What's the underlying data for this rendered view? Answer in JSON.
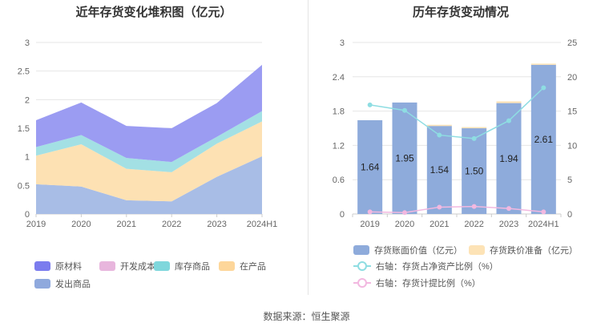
{
  "source": "数据来源：恒生聚源",
  "chart_data": [
    {
      "type": "area",
      "stacked": true,
      "title": "近年存货变化堆积图（亿元）",
      "categories": [
        "2019",
        "2020",
        "2021",
        "2022",
        "2023",
        "2024H1"
      ],
      "ylim": [
        0,
        3
      ],
      "yticks": [
        "0",
        "0.5",
        "1",
        "1.5",
        "2",
        "2.5",
        "3"
      ],
      "grid": true,
      "series": [
        {
          "name": "发出商品",
          "color": "#a8bde6",
          "values": [
            0.52,
            0.48,
            0.24,
            0.22,
            0.65,
            1.01
          ]
        },
        {
          "name": "在产品",
          "color": "#fde1b3",
          "values": [
            0.5,
            0.74,
            0.55,
            0.51,
            0.58,
            0.61
          ]
        },
        {
          "name": "库存商品",
          "color": "#a3e0e4",
          "values": [
            0.15,
            0.16,
            0.19,
            0.18,
            0.12,
            0.18
          ]
        },
        {
          "name": "开发成本",
          "color": "#e8b6dd",
          "values": [
            0.0,
            0.0,
            0.0,
            0.0,
            0.0,
            0.0
          ]
        },
        {
          "name": "原材料",
          "color": "#9b9cf2",
          "values": [
            0.47,
            0.57,
            0.56,
            0.59,
            0.59,
            0.81
          ]
        }
      ],
      "legend": {
        "position": "bottom",
        "items": [
          {
            "name": "原材料",
            "color": "#7b7cee"
          },
          {
            "name": "开发成本",
            "color": "#e8b6dd"
          },
          {
            "name": "库存商品",
            "color": "#7fd7dc"
          },
          {
            "name": "在产品",
            "color": "#fdd69a"
          },
          {
            "name": "发出商品",
            "color": "#8fa9dd"
          }
        ]
      }
    },
    {
      "type": "bar",
      "title": "历年存货变动情况",
      "categories": [
        "2019",
        "2020",
        "2021",
        "2022",
        "2023",
        "2024H1"
      ],
      "ylim": [
        0,
        3
      ],
      "yticks": [
        "0",
        "0.6",
        "1.2",
        "1.8",
        "2.4",
        "3"
      ],
      "y2lim": [
        0,
        25
      ],
      "y2ticks": [
        "0",
        "5",
        "10",
        "15",
        "20",
        "25"
      ],
      "series": [
        {
          "name": "存货账面价值（亿元）",
          "color": "#8eabdb",
          "values": [
            1.64,
            1.95,
            1.54,
            1.5,
            1.94,
            2.61
          ],
          "labels": [
            "1.64",
            "1.95",
            "1.54",
            "1.50",
            "1.94",
            "2.61"
          ]
        },
        {
          "name": "存货跌价准备（亿元）",
          "color": "#fde3b6",
          "values": [
            0.0,
            0.0,
            0.02,
            0.02,
            0.03,
            0.02
          ]
        }
      ],
      "lines": [
        {
          "name": "右轴：存货占净资产比例（%）",
          "color": "#8edde2",
          "axis": "right",
          "values": [
            15.9,
            15.1,
            11.5,
            11.0,
            13.6,
            18.4
          ]
        },
        {
          "name": "右轴：存货计提比例（%）",
          "color": "#f2b8e0",
          "axis": "right",
          "values": [
            0.3,
            0.2,
            1.0,
            1.1,
            0.8,
            0.3
          ]
        }
      ]
    }
  ]
}
